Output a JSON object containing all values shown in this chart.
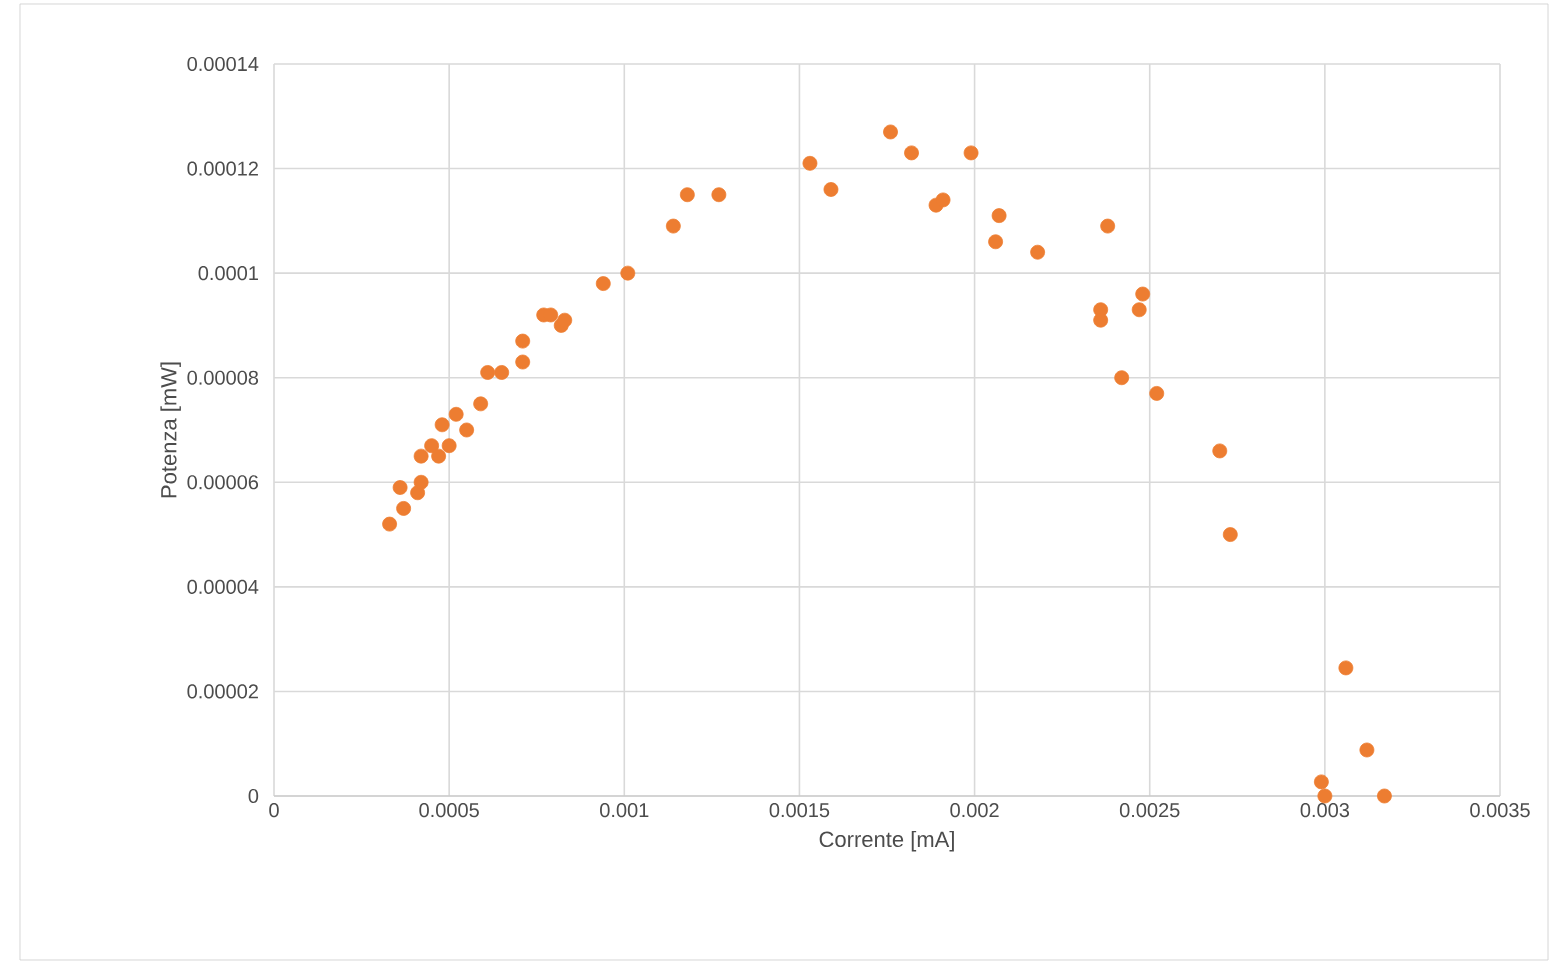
{
  "chart_data": {
    "type": "scatter",
    "xlabel": "Corrente [mA]",
    "ylabel": "Potenza [mW]",
    "x": [
      0.00033,
      0.00036,
      0.00037,
      0.00041,
      0.00042,
      0.00042,
      0.00045,
      0.00047,
      0.00048,
      0.0005,
      0.00052,
      0.00055,
      0.00059,
      0.00061,
      0.00065,
      0.00071,
      0.00071,
      0.00077,
      0.00079,
      0.00082,
      0.00083,
      0.00094,
      0.00101,
      0.00114,
      0.00118,
      0.00127,
      0.00153,
      0.00159,
      0.00176,
      0.00182,
      0.00189,
      0.00191,
      0.00199,
      0.00207,
      0.00206,
      0.00218,
      0.00238,
      0.00236,
      0.00236,
      0.00248,
      0.00247,
      0.00242,
      0.00252,
      0.0027,
      0.00273,
      0.00306,
      0.00312,
      0.00299,
      0.003,
      0.00317
    ],
    "values": [
      5.2e-05,
      5.9e-05,
      5.5e-05,
      5.8e-05,
      6e-05,
      6.5e-05,
      6.7e-05,
      6.5e-05,
      7.1e-05,
      6.7e-05,
      7.3e-05,
      7e-05,
      7.5e-05,
      8.1e-05,
      8.1e-05,
      8.3e-05,
      8.7e-05,
      9.2e-05,
      9.2e-05,
      9e-05,
      9.1e-05,
      9.8e-05,
      0.0001,
      0.000109,
      0.000115,
      0.000115,
      0.000121,
      0.000116,
      0.000127,
      0.000123,
      0.000113,
      0.000114,
      0.000123,
      0.000111,
      0.000106,
      0.000104,
      0.000109,
      9.3e-05,
      9.1e-05,
      9.6e-05,
      9.3e-05,
      8e-05,
      7.7e-05,
      6.6e-05,
      5e-05,
      2.45e-05,
      8.8e-06,
      2.7e-06,
      0,
      0
    ],
    "color": "#ed7d31",
    "marker": "circle",
    "grid": true,
    "xlim": [
      0,
      0.0035
    ],
    "xticks": [
      0,
      0.0005,
      0.001,
      0.0015,
      0.002,
      0.0025,
      0.003,
      0.0035
    ],
    "ylim": [
      0,
      0.00014
    ],
    "yticks": [
      0,
      {
        "value": 2e-05,
        "label": "0.00002"
      },
      {
        "value": 4e-05,
        "label": "0.00004"
      },
      {
        "value": 6e-05,
        "label": "0.00006"
      },
      {
        "value": 8e-05,
        "label": "0.00008"
      },
      0.0001,
      0.00012,
      0.00014
    ]
  }
}
